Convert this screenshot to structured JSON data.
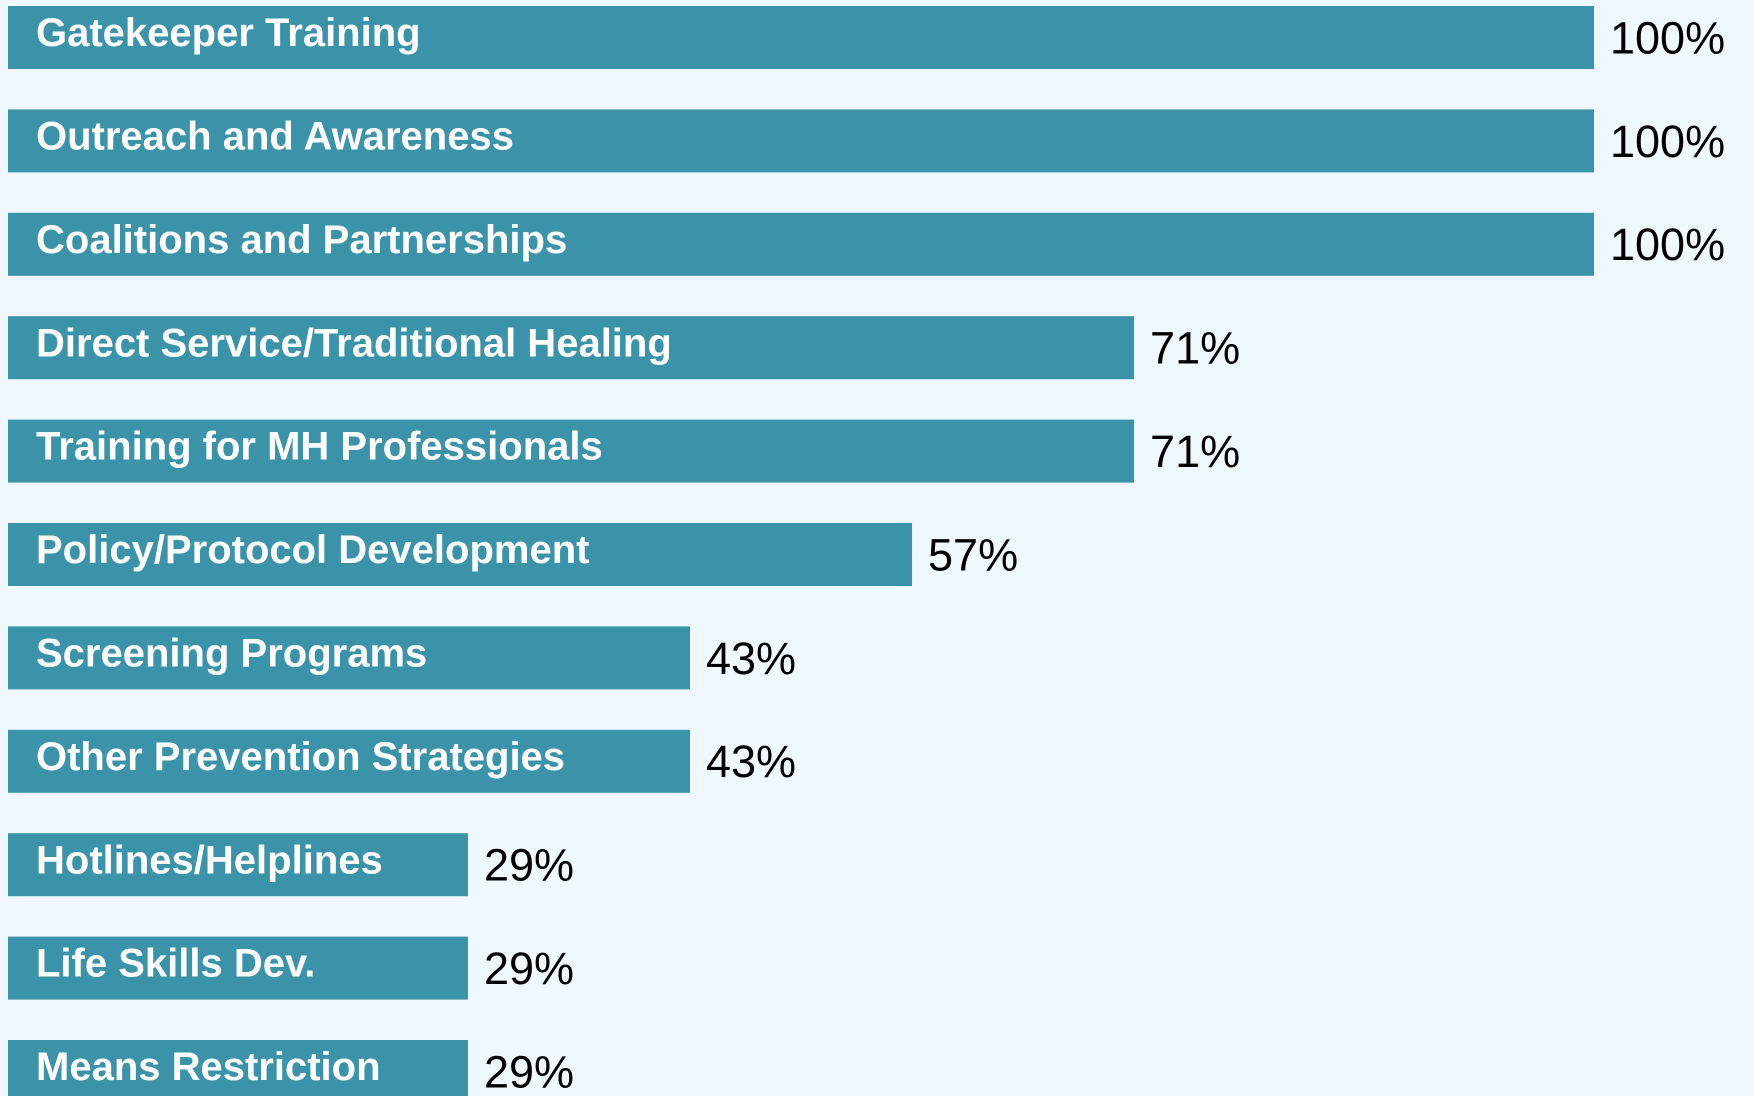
{
  "chart_data": {
    "type": "bar",
    "orientation": "horizontal",
    "color": "#3a93a8",
    "categories": [
      "Gatekeeper Training",
      "Outreach and Awareness",
      "Coalitions and Partnerships",
      "Direct Service/Traditional Healing",
      "Training for MH Professionals",
      "Policy/Protocol Development",
      "Screening Programs",
      "Other Prevention Strategies",
      "Hotlines/Helplines",
      "Life Skills Dev.",
      "Means Restriction"
    ],
    "values": [
      100,
      100,
      100,
      71,
      71,
      57,
      43,
      43,
      29,
      29,
      29
    ],
    "value_labels": [
      "100%",
      "100%",
      "100%",
      "71%",
      "71%",
      "57%",
      "43%",
      "43%",
      "29%",
      "29%",
      "29%"
    ]
  }
}
